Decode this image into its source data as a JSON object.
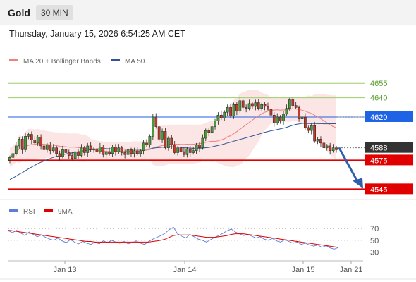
{
  "header": {
    "symbol": "Gold",
    "timeframe": "30 MIN",
    "datetime": "Thursday, January 15, 2026 6:54:25 AM CET"
  },
  "legend": {
    "main": [
      {
        "label": "MA 20 + Bollinger Bands",
        "color": "#f08080"
      },
      {
        "label": "MA 50",
        "color": "#2f5597"
      }
    ],
    "rsi": [
      {
        "label": "RSI",
        "color": "#5b7fd6"
      },
      {
        "label": "9MA",
        "color": "#e00000"
      }
    ]
  },
  "chart_data": [
    {
      "type": "candlestick",
      "ylim": [
        4535,
        4672
      ],
      "x_ticks": [
        "Jan 13",
        "Jan 14",
        "Jan 15",
        "Jan 21"
      ],
      "closes": [
        4578,
        4582,
        4590,
        4597,
        4586,
        4600,
        4602,
        4596,
        4593,
        4599,
        4590,
        4586,
        4591,
        4585,
        4588,
        4582,
        4579,
        4586,
        4583,
        4580,
        4577,
        4584,
        4580,
        4588,
        4583,
        4590,
        4586,
        4587,
        4584,
        4589,
        4581,
        4584,
        4582,
        4589,
        4584,
        4588,
        4583,
        4581,
        4586,
        4582,
        4585,
        4582,
        4585,
        4593,
        4591,
        4600,
        4620,
        4610,
        4597,
        4605,
        4588,
        4598,
        4591,
        4583,
        4588,
        4584,
        4581,
        4587,
        4583,
        4585,
        4591,
        4588,
        4598,
        4606,
        4604,
        4610,
        4616,
        4622,
        4619,
        4625,
        4630,
        4621,
        4633,
        4626,
        4637,
        4630,
        4629,
        4634,
        4631,
        4635,
        4629,
        4633,
        4631,
        4628,
        4622,
        4614,
        4620,
        4616,
        4623,
        4629,
        4638,
        4632,
        4630,
        4618,
        4620,
        4609,
        4606,
        4611,
        4595,
        4597,
        4593,
        4588,
        4590,
        4585,
        4588,
        4586
      ],
      "levels": [
        {
          "label": "4655",
          "value": 4655,
          "color": "#9bcf6a",
          "text": "#5a9e2f"
        },
        {
          "label": "4640",
          "value": 4640,
          "color": "#9bcf6a",
          "text": "#5a9e2f"
        },
        {
          "label": "4620",
          "value": 4620,
          "color": "#1e62e6",
          "text": "#ffffff",
          "box": "#1e62e6"
        },
        {
          "label": "4588",
          "value": 4588,
          "color": "#777777",
          "text": "#ffffff",
          "box": "#333333",
          "dotted": true
        },
        {
          "label": "4575",
          "value": 4575,
          "color": "#e00000",
          "text": "#ffffff",
          "box": "#e00000"
        },
        {
          "label": "4545",
          "value": 4545,
          "color": "#e00000",
          "text": "#ffffff",
          "box": "#e00000"
        }
      ],
      "forecast": {
        "from": 4588,
        "to": 4545
      }
    },
    {
      "type": "line",
      "ylim": [
        20,
        82
      ],
      "y_ticks": [
        "70",
        "50",
        "30"
      ],
      "series": [
        {
          "name": "RSI",
          "values": [
            66,
            63,
            67,
            62,
            58,
            64,
            60,
            56,
            59,
            55,
            52,
            50,
            54,
            49,
            46,
            51,
            47,
            44,
            48,
            45,
            43,
            47,
            44,
            49,
            46,
            50,
            47,
            45,
            48,
            44,
            46,
            49,
            45,
            43,
            48,
            52,
            55,
            58,
            62,
            68,
            72,
            61,
            57,
            54,
            60,
            56,
            52,
            50,
            47,
            51,
            55,
            58,
            62,
            66,
            69,
            64,
            61,
            58,
            60,
            57,
            54,
            56,
            52,
            50,
            53,
            49,
            47,
            51,
            48,
            45,
            47,
            43,
            45,
            42,
            40,
            42,
            38,
            41,
            37,
            35,
            38
          ]
        },
        {
          "name": "9MA",
          "values": [
            67,
            66,
            65,
            64,
            63,
            62,
            61,
            60,
            59,
            58,
            57,
            56,
            55,
            54,
            53,
            52,
            51,
            50,
            49,
            48,
            48,
            47,
            47,
            47,
            47,
            47,
            47,
            47,
            47,
            47,
            47,
            47,
            47,
            47,
            47,
            48,
            49,
            50,
            52,
            55,
            58,
            59,
            59,
            59,
            59,
            58,
            57,
            56,
            55,
            55,
            55,
            56,
            57,
            58,
            60,
            61,
            61,
            61,
            60,
            59,
            58,
            57,
            56,
            55,
            54,
            53,
            52,
            51,
            50,
            49,
            48,
            47,
            46,
            45,
            44,
            43,
            42,
            41,
            40,
            39,
            38
          ]
        }
      ]
    }
  ]
}
